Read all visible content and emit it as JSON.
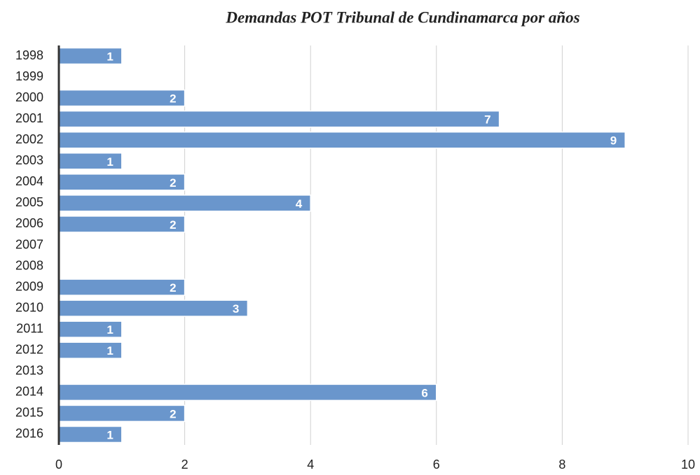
{
  "chart_data": {
    "type": "hbar",
    "title": "Demandas POT Tribunal de Cundinamarca por años",
    "categories": [
      "1998",
      "1999",
      "2000",
      "2001",
      "2002",
      "2003",
      "2004",
      "2005",
      "2006",
      "2007",
      "2008",
      "2009",
      "2010",
      "2011",
      "2012",
      "2013",
      "2014",
      "2015",
      "2016"
    ],
    "values": [
      1,
      0,
      2,
      7,
      9,
      1,
      2,
      4,
      2,
      0,
      0,
      2,
      3,
      1,
      1,
      0,
      6,
      2,
      1
    ],
    "color": "#6a96cc",
    "xlim": [
      0,
      10
    ],
    "xticks": [
      0,
      2,
      4,
      6,
      8,
      10
    ],
    "grid": true
  }
}
